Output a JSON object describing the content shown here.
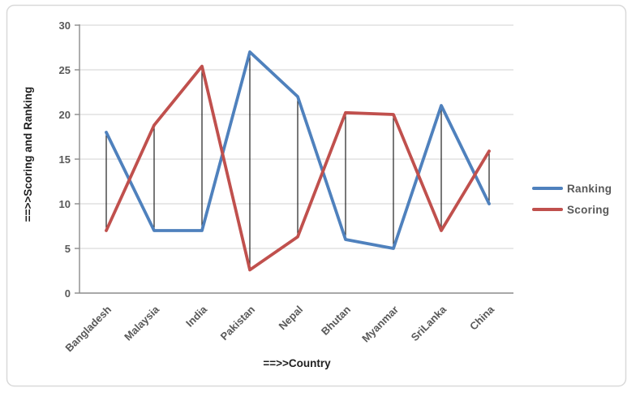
{
  "chart_data": {
    "type": "line",
    "categories": [
      "Bangladesh",
      "Malaysia",
      "India",
      "Pakistan",
      "Nepal",
      "Bhutan",
      "Myanmar",
      "SriLanka",
      "China"
    ],
    "series": [
      {
        "name": "Ranking",
        "color": "#4F81BD",
        "values": [
          18,
          7,
          7,
          27,
          22,
          6,
          5,
          21,
          10
        ]
      },
      {
        "name": "Scoring",
        "color": "#C0504D",
        "values": [
          7,
          18.8,
          25.4,
          2.6,
          6.3,
          20.2,
          20,
          7,
          15.9
        ]
      }
    ],
    "xlabel": "==>>Country",
    "ylabel": "==>>Scoring and Ranking",
    "ylim": [
      0,
      30
    ],
    "ytick_step": 5,
    "yticks": [
      "0",
      "5",
      "10",
      "15",
      "20",
      "25",
      "30"
    ],
    "grid": true,
    "high_low_lines": true,
    "legend_position": "right"
  },
  "styles": {
    "background": "#ffffff",
    "frame_border_color": "#d9d9d9",
    "grid_color": "#d9d9d9",
    "axis_color": "#8c8c8c",
    "tick_label_color": "#595959",
    "axis_title_color": "#1f1f1f",
    "legend_text_color": "#595959",
    "high_low_color": "#1f1f1f"
  }
}
